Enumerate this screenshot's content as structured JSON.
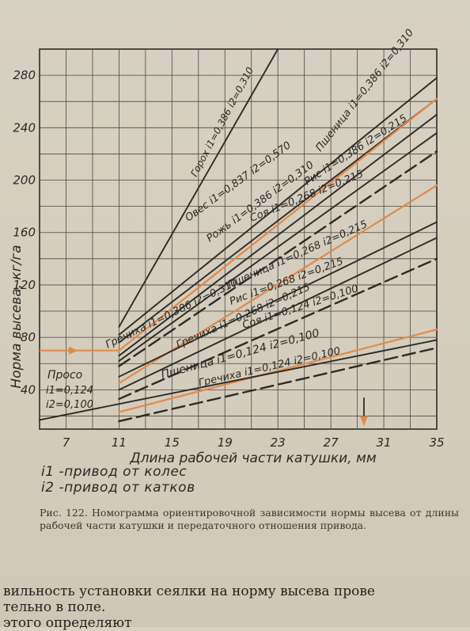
{
  "chart_data": {
    "type": "line",
    "xlabel": "Длина рабочей части катушки, мм",
    "ylabel": "Норма высева, кг/га",
    "xlim": [
      5,
      35
    ],
    "ylim": [
      10,
      300
    ],
    "xticks": [
      7,
      11,
      15,
      19,
      23,
      27,
      31,
      35
    ],
    "yticks": [
      40,
      80,
      120,
      160,
      200,
      240,
      280
    ],
    "grid": true,
    "series": [
      {
        "name": "Горох i1=0,386 i2=0,310",
        "style": "solid",
        "color": "#2d2a27",
        "x": [
          11,
          23
        ],
        "y": [
          88,
          300
        ]
      },
      {
        "name": "Овес i1=0,837 i2=0,570",
        "style": "solid",
        "color": "#2d2a27",
        "x": [
          11,
          35
        ],
        "y": [
          82,
          278
        ]
      },
      {
        "name": "Рожь i1=0,386 i2=0,310",
        "style": "solid",
        "color": "#2d2a27",
        "x": [
          11,
          35
        ],
        "y": [
          76,
          262
        ]
      },
      {
        "name": "Пшеница i1=0,386 i2=0,310",
        "style": "solid",
        "color": "#e08a4a",
        "x": [
          11,
          35
        ],
        "y": [
          70,
          262
        ]
      },
      {
        "name": "Рис i1=0,386 i2=0,215",
        "style": "solid",
        "color": "#2d2a27",
        "x": [
          11,
          35
        ],
        "y": [
          66,
          250
        ]
      },
      {
        "name": "Соя i1=0,268 i2=0,215",
        "style": "solid",
        "color": "#2d2a27",
        "x": [
          11,
          35
        ],
        "y": [
          62,
          236
        ]
      },
      {
        "name": "Гречиха i1=0,386 i2=0,310",
        "style": "dashed",
        "color": "#2d2a27",
        "x": [
          11,
          35
        ],
        "y": [
          58,
          222
        ]
      },
      {
        "name": "Пшеница i1=0,268 i2=0,215",
        "style": "solid",
        "color": "#e08a4a",
        "x": [
          11,
          35
        ],
        "y": [
          45,
          196
        ]
      },
      {
        "name": "Рис i1=0,268 i2=0,215",
        "style": "solid",
        "color": "#2d2a27",
        "x": [
          11,
          35
        ],
        "y": [
          50,
          168
        ]
      },
      {
        "name": "Соя i1=0,124 i2=0,100",
        "style": "solid",
        "color": "#2d2a27",
        "x": [
          11,
          35
        ],
        "y": [
          40,
          156
        ]
      },
      {
        "name": "Гречиха i1=0,268 i2=0,215",
        "style": "dashed",
        "color": "#2d2a27",
        "x": [
          11,
          35
        ],
        "y": [
          33,
          140
        ]
      },
      {
        "name": "Пшеница i1=0,124 i2=0,100",
        "style": "solid",
        "color": "#e08a4a",
        "x": [
          11,
          35
        ],
        "y": [
          23,
          86
        ]
      },
      {
        "name": "Гречиха i1=0,124 i2=0,100",
        "style": "dashed",
        "color": "#2d2a27",
        "x": [
          11,
          35
        ],
        "y": [
          16,
          72
        ]
      },
      {
        "name": "Просо i1=0,124 i2=0,100",
        "style": "solid",
        "color": "#2d2a27",
        "x": [
          5,
          35
        ],
        "y": [
          17,
          78
        ]
      }
    ],
    "annotations": [
      {
        "text": "Горох i1=0,386 i2=0,310"
      },
      {
        "text": "Овес i1=0,837 i2=0,570"
      },
      {
        "text": "Рожь i1=0,386 i2=0,310"
      },
      {
        "text": "Пшеница i1=0,386 i2=0,310"
      },
      {
        "text": "Рис i1=0,386 i2=0,215"
      },
      {
        "text": "Соя i1=0,268 i2=0,215"
      },
      {
        "text": "Гречиха i1=0,386 i2=0,310"
      },
      {
        "text": "Пшеница i1=0,268 i2=0,215"
      },
      {
        "text": "Гречиха i1=0,268 i2=0,215"
      },
      {
        "text": "Рис i1=0,268 i2=0,215"
      },
      {
        "text": "Соя i1=0,124 i2=0,100"
      },
      {
        "text": "Пшеница i1=0,124 i2=0,100"
      },
      {
        "text": "Гречиха i1=0,124 i2=0,100"
      },
      {
        "text": "Просо"
      },
      {
        "text": "i1=0,124"
      },
      {
        "text": "i2=0,100"
      }
    ],
    "example_reading": {
      "y": 70,
      "x": 29.5
    }
  },
  "legend": {
    "i1": "i1 -привод от колес",
    "i2": "i2 -привод от катков"
  },
  "caption": "Рис. 122. Номограмма ориентировочной зависимости нормы высева от длины рабочей части катушки и передаточного отношения привода.",
  "body_text": {
    "line1": "вильность установки сеялки на норму высева прове",
    "line2": "тельно в поле.",
    "line3": "этого определяют"
  },
  "colors": {
    "paper": "#d7d1c3",
    "ink": "#2d2a27",
    "grid": "#4a4540",
    "orange": "#e08a4a"
  }
}
